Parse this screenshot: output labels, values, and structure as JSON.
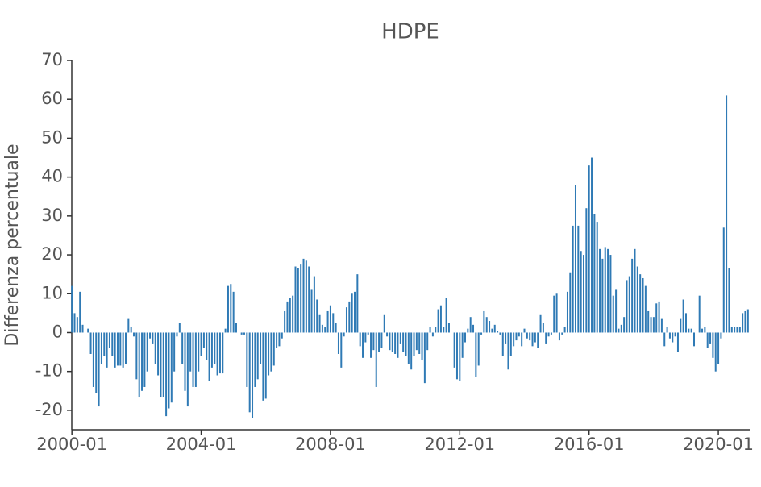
{
  "chart_data": {
    "type": "bar",
    "title": "HDPE",
    "y_label": "Differenza percentuale",
    "color": "#2f7ab5",
    "x": [
      "2000-01",
      "2000-02",
      "2000-03",
      "2000-04",
      "2000-05",
      "2000-06",
      "2000-07",
      "2000-08",
      "2000-09",
      "2000-10",
      "2000-11",
      "2000-12",
      "2001-01",
      "2001-02",
      "2001-03",
      "2001-04",
      "2001-05",
      "2001-06",
      "2001-07",
      "2001-08",
      "2001-09",
      "2001-10",
      "2001-11",
      "2001-12",
      "2002-01",
      "2002-02",
      "2002-03",
      "2002-04",
      "2002-05",
      "2002-06",
      "2002-07",
      "2002-08",
      "2002-09",
      "2002-10",
      "2002-11",
      "2002-12",
      "2003-01",
      "2003-02",
      "2003-03",
      "2003-04",
      "2003-05",
      "2003-06",
      "2003-07",
      "2003-08",
      "2003-09",
      "2003-10",
      "2003-11",
      "2003-12",
      "2004-01",
      "2004-02",
      "2004-03",
      "2004-04",
      "2004-05",
      "2004-06",
      "2004-07",
      "2004-08",
      "2004-09",
      "2004-10",
      "2004-11",
      "2004-12",
      "2005-01",
      "2005-02",
      "2005-03",
      "2005-04",
      "2005-05",
      "2005-06",
      "2005-07",
      "2005-08",
      "2005-09",
      "2005-10",
      "2005-11",
      "2005-12",
      "2006-01",
      "2006-02",
      "2006-03",
      "2006-04",
      "2006-05",
      "2006-06",
      "2006-07",
      "2006-08",
      "2006-09",
      "2006-10",
      "2006-11",
      "2006-12",
      "2007-01",
      "2007-02",
      "2007-03",
      "2007-04",
      "2007-05",
      "2007-06",
      "2007-07",
      "2007-08",
      "2007-09",
      "2007-10",
      "2007-11",
      "2007-12",
      "2008-01",
      "2008-02",
      "2008-03",
      "2008-04",
      "2008-05",
      "2008-06",
      "2008-07",
      "2008-08",
      "2008-09",
      "2008-10",
      "2008-11",
      "2008-12",
      "2009-01",
      "2009-02",
      "2009-03",
      "2009-04",
      "2009-05",
      "2009-06",
      "2009-07",
      "2009-08",
      "2009-09",
      "2009-10",
      "2009-11",
      "2009-12",
      "2010-01",
      "2010-02",
      "2010-03",
      "2010-04",
      "2010-05",
      "2010-06",
      "2010-07",
      "2010-08",
      "2010-09",
      "2010-10",
      "2010-11",
      "2010-12",
      "2011-01",
      "2011-02",
      "2011-03",
      "2011-04",
      "2011-05",
      "2011-06",
      "2011-07",
      "2011-08",
      "2011-09",
      "2011-10",
      "2011-11",
      "2011-12",
      "2012-01",
      "2012-02",
      "2012-03",
      "2012-04",
      "2012-05",
      "2012-06",
      "2012-07",
      "2012-08",
      "2012-09",
      "2012-10",
      "2012-11",
      "2012-12",
      "2013-01",
      "2013-02",
      "2013-03",
      "2013-04",
      "2013-05",
      "2013-06",
      "2013-07",
      "2013-08",
      "2013-09",
      "2013-10",
      "2013-11",
      "2013-12",
      "2014-01",
      "2014-02",
      "2014-03",
      "2014-04",
      "2014-05",
      "2014-06",
      "2014-07",
      "2014-08",
      "2014-09",
      "2014-10",
      "2014-11",
      "2014-12",
      "2015-01",
      "2015-02",
      "2015-03",
      "2015-04",
      "2015-05",
      "2015-06",
      "2015-07",
      "2015-08",
      "2015-09",
      "2015-10",
      "2015-11",
      "2015-12",
      "2016-01",
      "2016-02",
      "2016-03",
      "2016-04",
      "2016-05",
      "2016-06",
      "2016-07",
      "2016-08",
      "2016-09",
      "2016-10",
      "2016-11",
      "2016-12",
      "2017-01",
      "2017-02",
      "2017-03",
      "2017-04",
      "2017-05",
      "2017-06",
      "2017-07",
      "2017-08",
      "2017-09",
      "2017-10",
      "2017-11",
      "2017-12",
      "2018-01",
      "2018-02",
      "2018-03",
      "2018-04",
      "2018-05",
      "2018-06",
      "2018-07",
      "2018-08",
      "2018-09",
      "2018-10",
      "2018-11",
      "2018-12",
      "2019-01",
      "2019-02",
      "2019-03",
      "2019-04",
      "2019-05",
      "2019-06",
      "2019-07",
      "2019-08",
      "2019-09",
      "2019-10",
      "2019-11",
      "2019-12",
      "2020-01",
      "2020-02",
      "2020-03",
      "2020-04",
      "2020-05",
      "2020-06",
      "2020-07",
      "2020-08",
      "2020-09",
      "2020-10",
      "2020-11",
      "2020-12"
    ],
    "values": [
      12,
      5,
      4,
      10.5,
      2,
      0,
      1,
      -5.5,
      -14,
      -15.5,
      -19,
      -8,
      -6,
      -9,
      -4,
      -6,
      -9,
      -8.5,
      -8.5,
      -9,
      -8,
      3.5,
      1.5,
      -1,
      -12,
      -16.5,
      -15,
      -14,
      -10,
      -1.5,
      -3,
      -8,
      -11,
      -16.5,
      -16.5,
      -21.5,
      -19.5,
      -18,
      -10,
      -1,
      2.5,
      -8,
      -15,
      -19,
      -10,
      -14,
      -14,
      -10,
      -6,
      -4,
      -7,
      -12.5,
      -9,
      -8,
      -11,
      -10.5,
      -10.5,
      1,
      12,
      12.5,
      10.5,
      2.5,
      0,
      -0.5,
      -0.5,
      -14,
      -20.5,
      -22,
      -14,
      -12,
      -8,
      -17.5,
      -17,
      -11,
      -10,
      -8.5,
      -4,
      -3.5,
      -1.5,
      5.5,
      8,
      9,
      9.5,
      17,
      16.5,
      17.5,
      19,
      18.5,
      17,
      11,
      14.5,
      8.5,
      4.5,
      2,
      1.5,
      5.5,
      7,
      5,
      2.5,
      -5.5,
      -9,
      -1,
      6.5,
      8,
      10,
      10.5,
      15,
      -3.5,
      -6.5,
      -2.5,
      -0.5,
      -6.5,
      -4.5,
      -14,
      -5,
      -4,
      4.5,
      -1,
      -4.5,
      -5,
      -5.5,
      -6.5,
      -3,
      -5,
      -6,
      -8,
      -9.5,
      -6,
      -4.5,
      -5.5,
      -7,
      -13,
      -4.5,
      1.5,
      -1,
      1.5,
      6,
      7,
      1.5,
      9,
      2.5,
      0,
      -9,
      -12,
      -12.5,
      -6.5,
      -2.5,
      1,
      4,
      2,
      -11.5,
      -8.5,
      -0.5,
      5.5,
      4,
      3,
      1,
      2,
      0.5,
      -0.5,
      -6,
      -3,
      -9.5,
      -6,
      -3.5,
      -2,
      -1,
      -3.5,
      1,
      -1.5,
      -2,
      -3.5,
      -2.5,
      -4,
      4.5,
      2.5,
      -3,
      -1,
      -0.5,
      9.5,
      10,
      -2,
      -0.5,
      1.5,
      10.5,
      15.5,
      27.5,
      38,
      27.5,
      21,
      20,
      32,
      43,
      45,
      30.5,
      28.5,
      21.5,
      19,
      22,
      21.5,
      20,
      9.5,
      11,
      1,
      2,
      4,
      13.5,
      14.5,
      19,
      21.5,
      17,
      15,
      14,
      12,
      5.5,
      4,
      4,
      7.5,
      8,
      3.5,
      -3.5,
      1.5,
      -1.5,
      -2.5,
      -1,
      -5,
      3.5,
      8.5,
      5,
      1,
      1,
      -3.5,
      0,
      9.5,
      1,
      1.5,
      -4,
      -3,
      -6.5,
      -10,
      -8,
      -1.5,
      27,
      61,
      16.5,
      1.5,
      1.5,
      1.5,
      1.5,
      5,
      5.5,
      6
    ],
    "xticks": [
      "2000-01",
      "2004-01",
      "2008-01",
      "2012-01",
      "2016-01",
      "2020-01"
    ],
    "ylim": [
      -25,
      70
    ],
    "yticks": [
      -20,
      -10,
      0,
      10,
      20,
      30,
      40,
      50,
      60,
      70
    ]
  }
}
